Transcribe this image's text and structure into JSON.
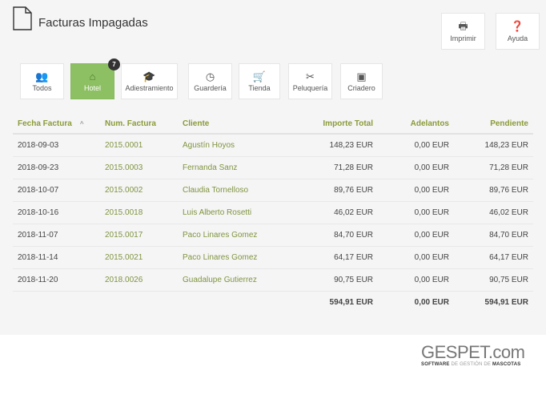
{
  "header": {
    "title": "Facturas Impagadas",
    "print_label": "Imprimir",
    "help_label": "Ayuda"
  },
  "categories": [
    {
      "label": "Todos",
      "icon": "users-icon",
      "glyph": "👥"
    },
    {
      "label": "Hotel",
      "icon": "home-icon",
      "glyph": "⌂",
      "active": true,
      "badge": "7"
    },
    {
      "label": "Adiestramiento",
      "icon": "graduation-cap-icon",
      "glyph": "🎓"
    },
    {
      "label": "Guardería",
      "icon": "clock-icon",
      "glyph": "◷"
    },
    {
      "label": "Tienda",
      "icon": "cart-icon",
      "glyph": "🛒"
    },
    {
      "label": "Peluquería",
      "icon": "scissors-icon",
      "glyph": "✂"
    },
    {
      "label": "Criadero",
      "icon": "dog-icon",
      "glyph": "▣"
    }
  ],
  "table": {
    "headers": [
      "Fecha Factura",
      "Num. Factura",
      "Cliente",
      "Importe Total",
      "Adelantos",
      "Pendiente"
    ],
    "sort_indicator": "^",
    "rows": [
      [
        "2018-09-03",
        "2015.0001",
        "Agustín Hoyos",
        "148,23 EUR",
        "0,00 EUR",
        "148,23 EUR"
      ],
      [
        "2018-09-23",
        "2015.0003",
        "Fernanda Sanz",
        "71,28 EUR",
        "0,00 EUR",
        "71,28 EUR"
      ],
      [
        "2018-10-07",
        "2015.0002",
        "Claudia Tornelloso",
        "89,76 EUR",
        "0,00 EUR",
        "89,76 EUR"
      ],
      [
        "2018-10-16",
        "2015.0018",
        "Luis Alberto Rosetti",
        "46,02 EUR",
        "0,00 EUR",
        "46,02 EUR"
      ],
      [
        "2018-11-07",
        "2015.0017",
        "Paco Linares Gomez",
        "84,70 EUR",
        "0,00 EUR",
        "84,70 EUR"
      ],
      [
        "2018-11-14",
        "2015.0021",
        "Paco Linares Gomez",
        "64,17 EUR",
        "0,00 EUR",
        "64,17 EUR"
      ],
      [
        "2018-11-20",
        "2018.0026",
        "Guadalupe Gutierrez",
        "90,75 EUR",
        "0,00 EUR",
        "90,75 EUR"
      ]
    ],
    "totals": [
      "594,91 EUR",
      "0,00 EUR",
      "594,91 EUR"
    ]
  },
  "logo": {
    "main": "GESPET",
    "suffix": ".com",
    "tagline_a": "SOFTWARE",
    "tagline_b": " DE GESTIÓN DE ",
    "tagline_c": "MASCOTAS"
  }
}
